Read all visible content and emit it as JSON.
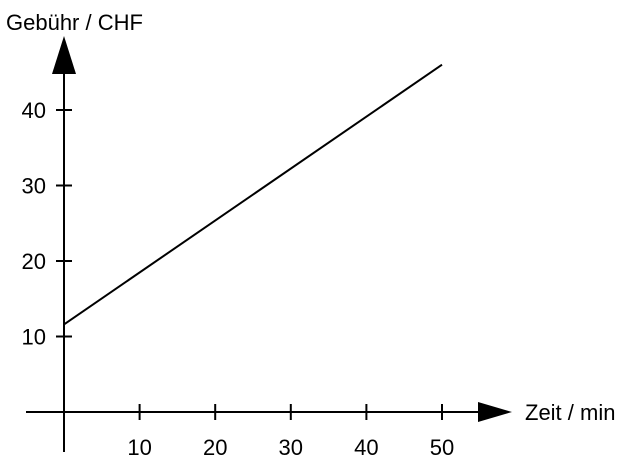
{
  "chart_data": {
    "type": "line",
    "xlabel": "Zeit / min",
    "ylabel": "Gebühr / CHF",
    "x_ticks": [
      10,
      20,
      30,
      40,
      50
    ],
    "y_ticks": [
      10,
      20,
      30,
      40
    ],
    "xlim": [
      0,
      50
    ],
    "ylim": [
      0,
      46
    ],
    "grid": false,
    "series": [
      {
        "x": [
          0,
          50
        ],
        "y": [
          11.6,
          46
        ]
      }
    ]
  }
}
